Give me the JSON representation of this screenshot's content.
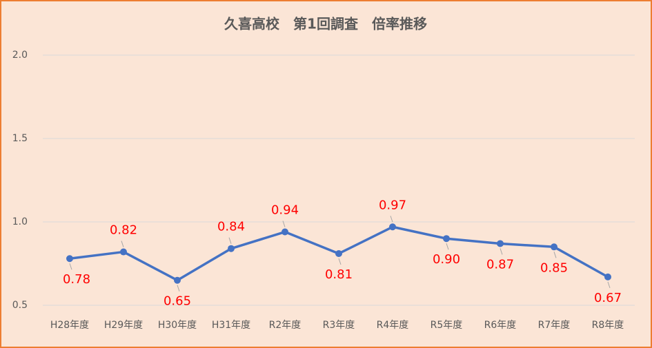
{
  "chart_data": {
    "type": "line",
    "title": "久喜高校　第1回調査　倍率推移",
    "categories": [
      "H28年度",
      "H29年度",
      "H30年度",
      "H31年度",
      "R2年度",
      "R3年度",
      "R4年度",
      "R5年度",
      "R6年度",
      "R7年度",
      "R8年度"
    ],
    "series": [
      {
        "name": "倍率",
        "color": "#4472c4",
        "values": [
          0.78,
          0.82,
          0.65,
          0.84,
          0.94,
          0.81,
          0.97,
          0.9,
          0.87,
          0.85,
          0.67
        ],
        "value_labels": [
          "0.78",
          "0.82",
          "0.65",
          "0.84",
          "0.94",
          "0.81",
          "0.97",
          "0.90",
          "0.87",
          "0.85",
          "0.67"
        ]
      }
    ],
    "ylim": [
      0.5,
      2.0
    ],
    "yticks": [
      0.5,
      {
        "value": 1,
        "label": "1.0"
      },
      1.5,
      {
        "value": 2,
        "label": "2.0"
      }
    ],
    "grid": true
  }
}
